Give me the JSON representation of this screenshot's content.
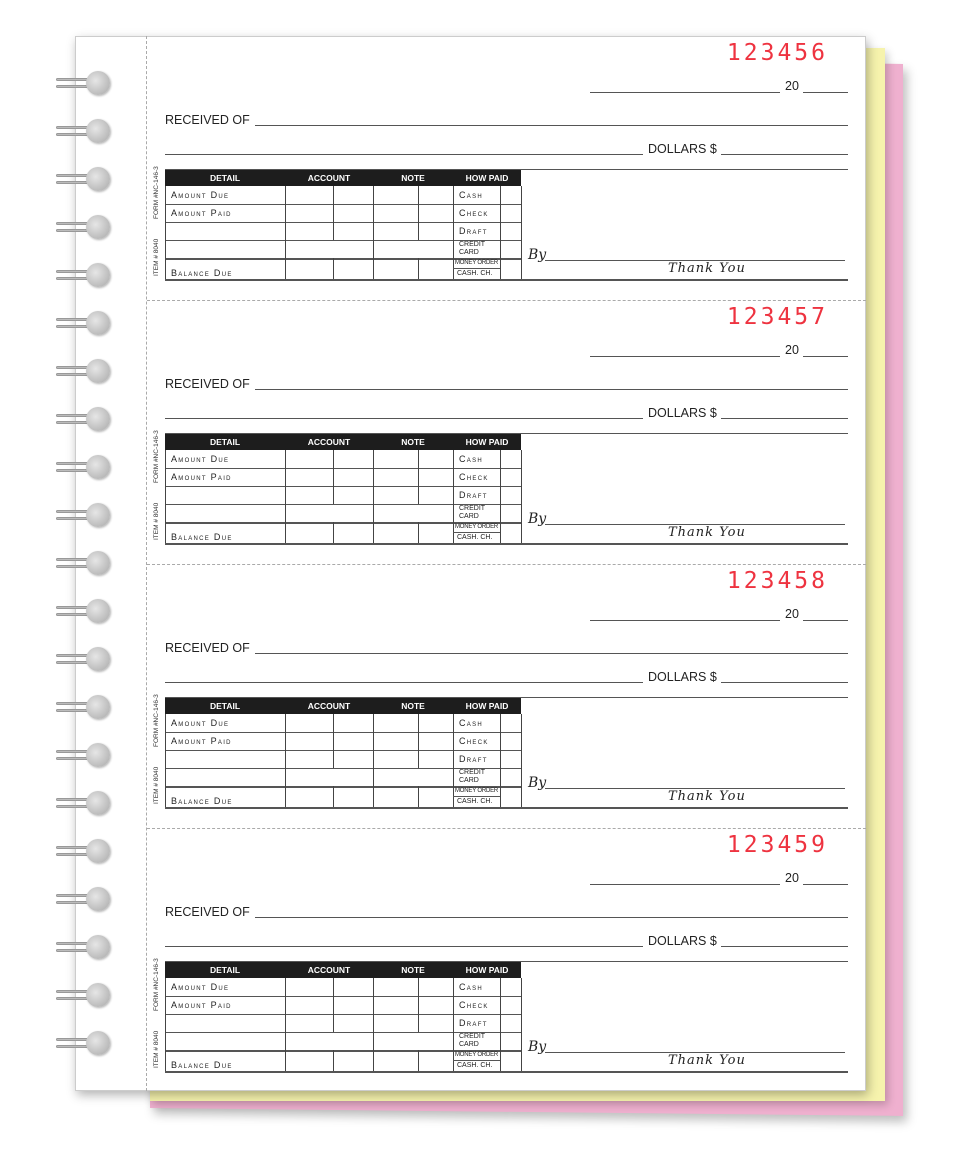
{
  "colors": {
    "number": "#ee3340",
    "yellow_copy": "#f6f3ad",
    "pink_copy": "#efb0cf"
  },
  "form": {
    "year_prefix": "20",
    "received_of": "RECEIVED OF",
    "dollars": "DOLLARS $",
    "form_code": "FORM #NC-146-3",
    "item_code": "ITEM # 8040",
    "headers": [
      "DETAIL",
      "ACCOUNT",
      "NOTE",
      "HOW PAID"
    ],
    "details": [
      "Amount Due",
      "Amount Paid",
      "Balance Due"
    ],
    "how_paid": [
      "Cash",
      "Check",
      "Draft",
      "CREDIT CARD",
      "MONEY ORDER",
      "CASH. CH."
    ],
    "by": "By",
    "thank_you": "Thank You"
  },
  "receipts": [
    {
      "number": "123456"
    },
    {
      "number": "123457"
    },
    {
      "number": "123458"
    },
    {
      "number": "123459"
    }
  ]
}
